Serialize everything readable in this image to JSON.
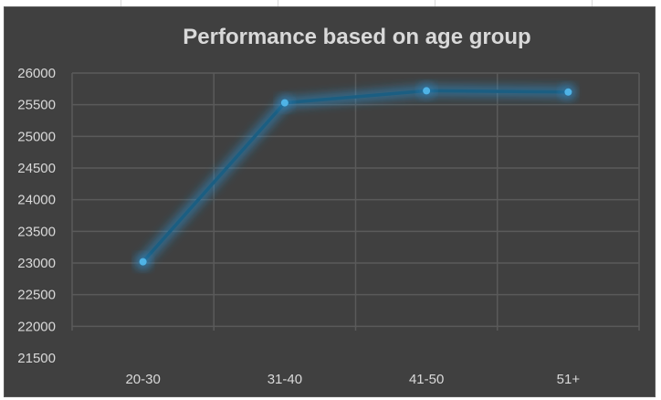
{
  "chart_data": {
    "type": "line",
    "title": "Performance based on age group",
    "xlabel": "",
    "ylabel": "",
    "categories": [
      "20-30",
      "31-40",
      "41-50",
      "51+"
    ],
    "series": [
      {
        "values": [
          23020,
          25530,
          25720,
          25700
        ]
      }
    ],
    "ylim": [
      21500,
      26000
    ],
    "yticks": [
      21500,
      22000,
      22500,
      23000,
      23500,
      24000,
      24500,
      25000,
      25500,
      26000
    ],
    "grid": true,
    "legend": "none",
    "colors": {
      "background": "#404040",
      "grid": "#5a5a5a",
      "text": "#d9d9d9",
      "line": "#1b5e82",
      "marker": "#4fb3e6",
      "glow": "#2a8fcf"
    }
  }
}
